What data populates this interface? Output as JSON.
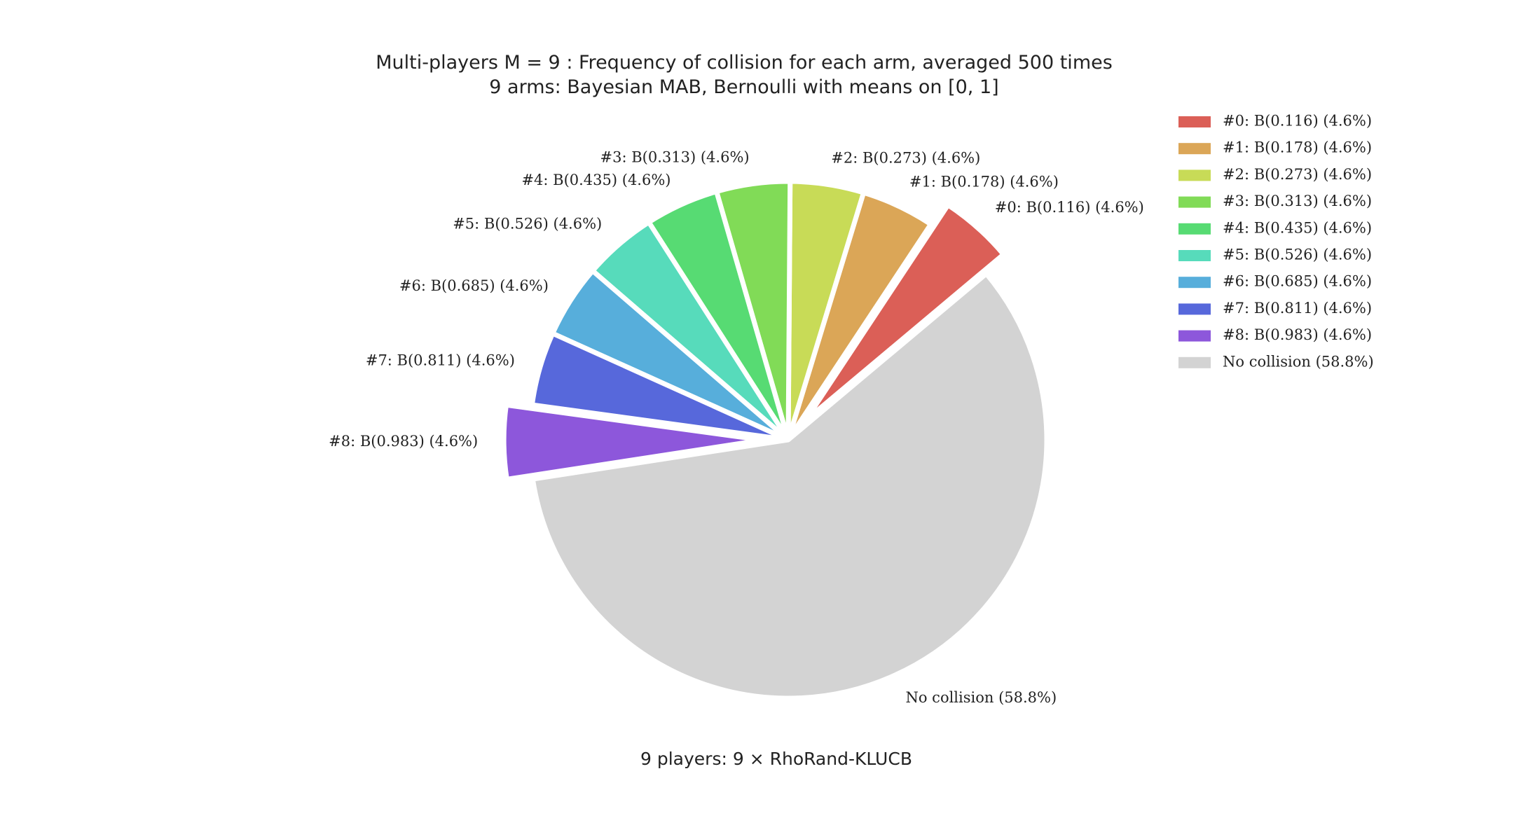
{
  "chart_data": {
    "type": "pie",
    "title": "Multi-players M = 9 : Frequency of collision for each arm, averaged 500 times",
    "subtitle": "9 arms: Bayesian MAB, Bernoulli with means on [0, 1]",
    "xlabel": "9 players: 9 × RhoRand-KLUCB",
    "legend_position": "right",
    "slices": [
      {
        "label": "#0: B(0.116) (4.6%)",
        "value": 4.6,
        "color": "#db5f57",
        "explode": true
      },
      {
        "label": "#1: B(0.178) (4.6%)",
        "value": 4.6,
        "color": "#dba657",
        "explode": false
      },
      {
        "label": "#2: B(0.273) (4.6%)",
        "value": 4.6,
        "color": "#c8db57",
        "explode": false
      },
      {
        "label": "#3: B(0.313) (4.6%)",
        "value": 4.6,
        "color": "#81db57",
        "explode": false
      },
      {
        "label": "#4: B(0.435) (4.6%)",
        "value": 4.6,
        "color": "#57db73",
        "explode": false
      },
      {
        "label": "#5: B(0.526) (4.6%)",
        "value": 4.6,
        "color": "#57dbbb",
        "explode": false
      },
      {
        "label": "#6: B(0.685) (4.6%)",
        "value": 4.6,
        "color": "#57aedb",
        "explode": false
      },
      {
        "label": "#7: B(0.811) (4.6%)",
        "value": 4.6,
        "color": "#5768db",
        "explode": false
      },
      {
        "label": "#8: B(0.983) (4.6%)",
        "value": 4.6,
        "color": "#8d57db",
        "explode": true
      },
      {
        "label": "No collision (58.8%)",
        "value": 58.8,
        "color": "#d3d3d3",
        "explode": false
      }
    ]
  }
}
